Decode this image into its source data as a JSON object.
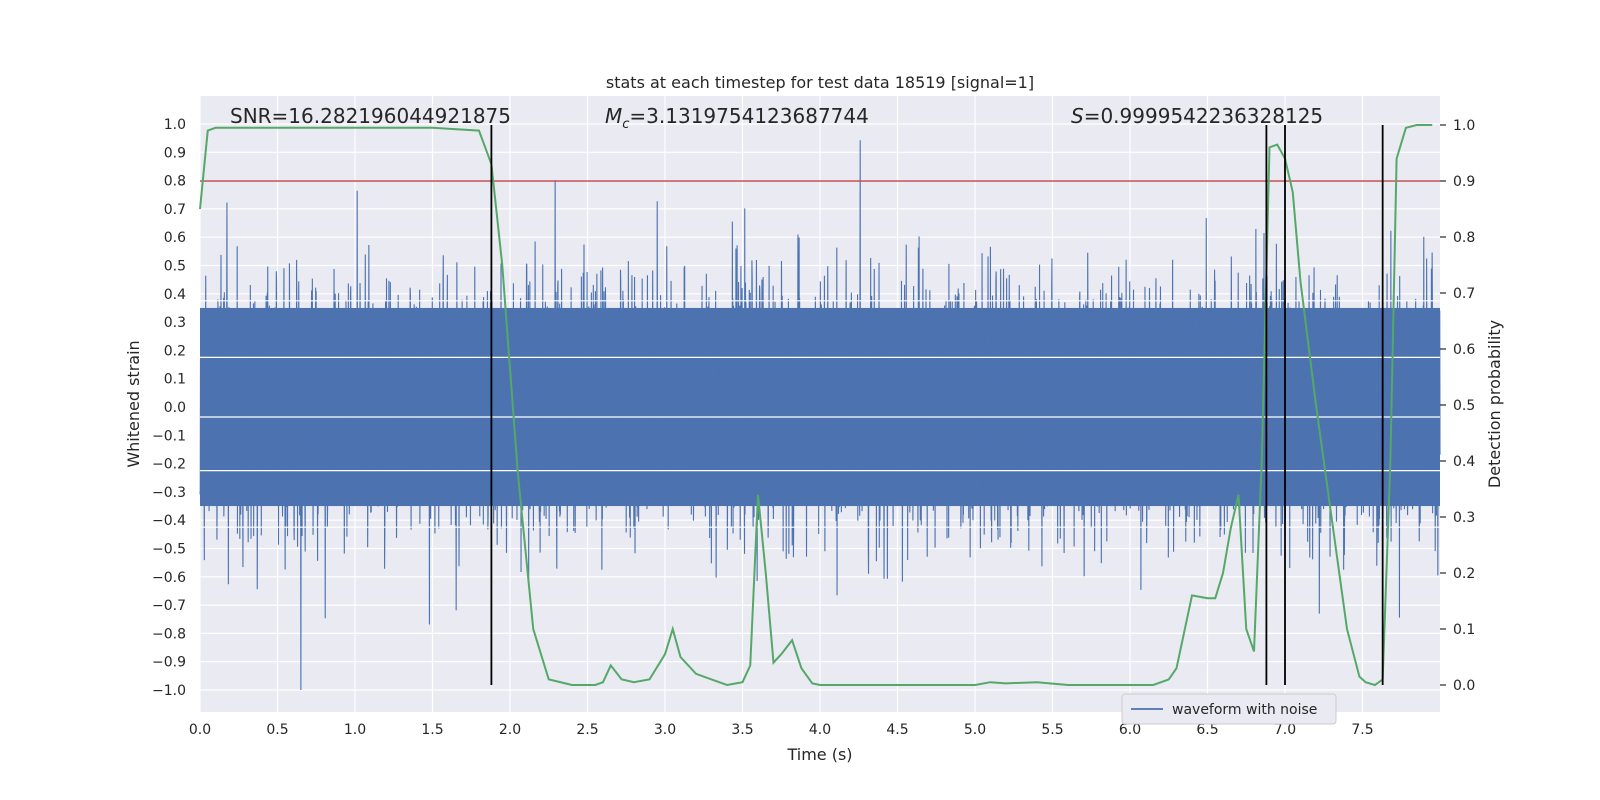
{
  "chart_data": {
    "type": "line",
    "title": "stats at each timestep for test data 18519 [signal=1]",
    "xlabel": "Time (s)",
    "ylabel_left": "Whitened strain",
    "ylabel_right": "Detection probability",
    "xlim": [
      0.0,
      8.0
    ],
    "ylim_left": [
      -1.1,
      1.05
    ],
    "ylim_right": [
      -0.05,
      1.02
    ],
    "x_ticks": [
      "0.0",
      "0.5",
      "1.0",
      "1.5",
      "2.0",
      "2.5",
      "3.0",
      "3.5",
      "4.0",
      "4.5",
      "5.0",
      "5.5",
      "6.0",
      "6.5",
      "7.0",
      "7.5"
    ],
    "y_left_ticks": [
      "−1.0",
      "−0.9",
      "−0.8",
      "−0.7",
      "−0.6",
      "−0.5",
      "−0.4",
      "−0.3",
      "−0.2",
      "−0.1",
      "0.0",
      "0.1",
      "0.2",
      "0.3",
      "0.4",
      "0.5",
      "0.6",
      "0.7",
      "0.8",
      "0.9",
      "1.0"
    ],
    "y_right_ticks": [
      "0.0",
      "0.1",
      "0.2",
      "0.3",
      "0.4",
      "0.5",
      "0.6",
      "0.7",
      "0.8",
      "0.9",
      "1.0"
    ],
    "annotations": {
      "snr": "SNR=16.282196044921875",
      "mc_symbol": "M",
      "mc_subscript": "c",
      "mc_value": "=3.1319754123687744",
      "s_symbol": "S",
      "s_value": "=0.9999542236328125"
    },
    "legend": {
      "label": "waveform with noise",
      "location": "lower-right"
    },
    "threshold_line": {
      "axis": "right",
      "value": 0.9,
      "color": "#c44e52"
    },
    "vertical_lines_x": [
      1.88,
      6.88,
      7.0,
      7.63
    ],
    "waveform": {
      "name": "waveform with noise",
      "color": "#4c72b0",
      "description": "dense noise trace spanning roughly -1.0 to 1.0 whitened strain",
      "core_band": [
        -0.35,
        0.35
      ],
      "max_peak": 0.98,
      "min_trough": -1.0
    },
    "probability_series": {
      "name": "detection probability",
      "color": "#55a868",
      "x": [
        0.0,
        0.05,
        0.1,
        0.2,
        0.5,
        1.0,
        1.5,
        1.8,
        1.88,
        1.95,
        2.05,
        2.15,
        2.25,
        2.4,
        2.55,
        2.6,
        2.65,
        2.72,
        2.8,
        2.9,
        3.0,
        3.05,
        3.1,
        3.2,
        3.3,
        3.4,
        3.5,
        3.55,
        3.6,
        3.65,
        3.7,
        3.75,
        3.82,
        3.88,
        3.95,
        4.0,
        4.2,
        4.5,
        4.8,
        5.0,
        5.1,
        5.2,
        5.4,
        5.6,
        5.8,
        6.0,
        6.15,
        6.25,
        6.3,
        6.4,
        6.5,
        6.55,
        6.6,
        6.65,
        6.7,
        6.75,
        6.8,
        6.85,
        6.9,
        6.95,
        7.0,
        7.05,
        7.1,
        7.2,
        7.3,
        7.4,
        7.48,
        7.52,
        7.58,
        7.63,
        7.68,
        7.72,
        7.78,
        7.85,
        7.95
      ],
      "values": [
        0.85,
        0.99,
        0.995,
        0.995,
        0.995,
        0.995,
        0.995,
        0.99,
        0.93,
        0.75,
        0.38,
        0.1,
        0.01,
        0.0,
        0.0,
        0.005,
        0.035,
        0.01,
        0.005,
        0.01,
        0.055,
        0.1,
        0.05,
        0.02,
        0.01,
        0.0,
        0.005,
        0.035,
        0.34,
        0.2,
        0.04,
        0.055,
        0.08,
        0.03,
        0.003,
        0.0,
        0.0,
        0.0,
        0.0,
        0.0,
        0.005,
        0.003,
        0.005,
        0.0,
        0.0,
        0.0,
        0.0,
        0.01,
        0.03,
        0.16,
        0.155,
        0.155,
        0.2,
        0.28,
        0.34,
        0.1,
        0.06,
        0.4,
        0.96,
        0.965,
        0.94,
        0.88,
        0.72,
        0.5,
        0.3,
        0.1,
        0.015,
        0.005,
        0.0,
        0.01,
        0.4,
        0.94,
        0.995,
        1.0,
        1.0
      ]
    }
  }
}
